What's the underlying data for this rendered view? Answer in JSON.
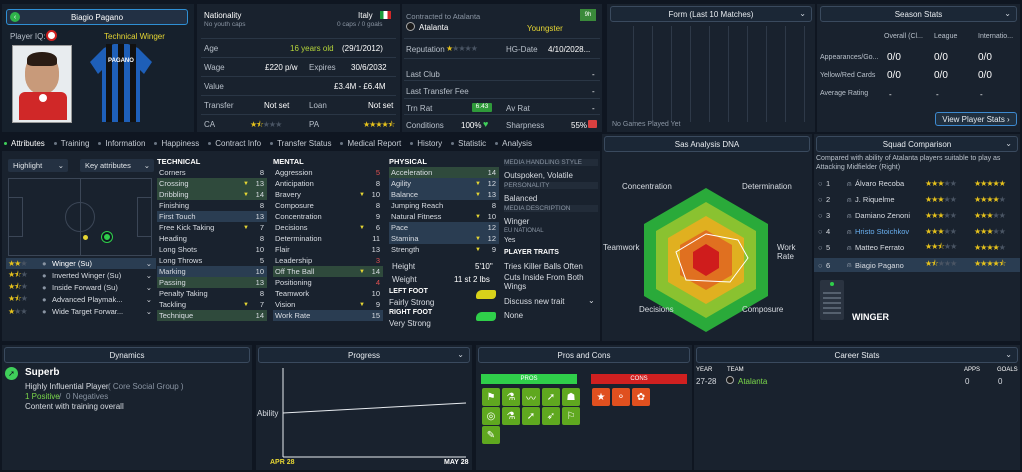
{
  "player": {
    "name": "Biagio Pagano",
    "iq_label": "Player IQ:",
    "role": "Technical Winger",
    "shirt_name": "PAGANO"
  },
  "bio": {
    "nationality_label": "Nationality",
    "nationality": "Italy",
    "youth_caps": "No youth caps",
    "caps": "0 caps / 0 goals",
    "age_label": "Age",
    "age": "16 years old",
    "dob": "(29/1/2012)",
    "wage_label": "Wage",
    "wage": "£220 p/w",
    "expires_label": "Expires",
    "expires": "30/6/2032",
    "value_label": "Value",
    "value": "£3.4M - £6.4M",
    "transfer_label": "Transfer",
    "transfer": "Not set",
    "loan_label": "Loan",
    "loan": "Not set",
    "ca_label": "CA",
    "pa_label": "PA",
    "ca_stars": 1.5,
    "pa_stars": 4.5
  },
  "contract": {
    "title": "Contracted to Atalanta",
    "club": "Atalanta",
    "status": "Youngster",
    "badge": "9h",
    "reputation_label": "Reputation",
    "hg_label": "HG-Date",
    "hg_date": "4/10/2028...",
    "last_club_label": "Last Club",
    "last_club": "-",
    "last_fee_label": "Last Transfer Fee",
    "last_fee": "-",
    "trn_label": "Trn Rat",
    "trn_value": "6.43",
    "av_label": "Av Rat",
    "av_value": "-",
    "cond_label": "Conditions",
    "cond_value": "100%",
    "sharp_label": "Sharpness",
    "sharp_value": "55%"
  },
  "form": {
    "title": "Form (Last 10 Matches)",
    "empty": "No Games Played Yet"
  },
  "season": {
    "title": "Season Stats",
    "cols": [
      "Overall (Cl...",
      "League",
      "Internatio..."
    ],
    "rows": [
      {
        "label": "Appearances/Go...",
        "vals": [
          "0/0",
          "0/0",
          "0/0"
        ]
      },
      {
        "label": "Yellow/Red Cards",
        "vals": [
          "0/0",
          "0/0",
          "0/0"
        ]
      },
      {
        "label": "Average Rating",
        "vals": [
          "-",
          "-",
          "-"
        ]
      }
    ],
    "button": "View Player Stats"
  },
  "tabs": [
    "Attributes",
    "Training",
    "Information",
    "Happiness",
    "Contract Info",
    "Transfer Status",
    "Medical Report",
    "History",
    "Statistic",
    "Analysis"
  ],
  "pitch": {
    "highlight": "Highlight",
    "key_attr": "Key attributes"
  },
  "roles": [
    {
      "name": "Winger (Su)",
      "stars": 2
    },
    {
      "name": "Inverted Winger (Su)",
      "stars": 1.5
    },
    {
      "name": "Inside Forward (Su)",
      "stars": 1.5
    },
    {
      "name": "Advanced Playmak...",
      "stars": 1.5
    },
    {
      "name": "Wide Target Forwar...",
      "stars": 1
    }
  ],
  "technical": {
    "title": "TECHNICAL",
    "items": [
      [
        "Corners",
        "8"
      ],
      [
        "Crossing",
        "13"
      ],
      [
        "Dribbling",
        "14"
      ],
      [
        "Finishing",
        "8"
      ],
      [
        "First Touch",
        "13"
      ],
      [
        "Free Kick Taking",
        "7"
      ],
      [
        "Heading",
        "8"
      ],
      [
        "Long Shots",
        "10"
      ],
      [
        "Long Throws",
        "5"
      ],
      [
        "Marking",
        "10"
      ],
      [
        "Passing",
        "13"
      ],
      [
        "Penalty Taking",
        "8"
      ],
      [
        "Tackling",
        "7"
      ],
      [
        "Technique",
        "14"
      ]
    ]
  },
  "mental": {
    "title": "MENTAL",
    "items": [
      [
        "Aggression",
        "5"
      ],
      [
        "Anticipation",
        "8"
      ],
      [
        "Bravery",
        "10"
      ],
      [
        "Composure",
        "8"
      ],
      [
        "Concentration",
        "9"
      ],
      [
        "Decisions",
        "6"
      ],
      [
        "Determination",
        "11"
      ],
      [
        "Flair",
        "13"
      ],
      [
        "Leadership",
        "3"
      ],
      [
        "Off The Ball",
        "14"
      ],
      [
        "Positioning",
        "4"
      ],
      [
        "Teamwork",
        "10"
      ],
      [
        "Vision",
        "9"
      ],
      [
        "Work Rate",
        "15"
      ]
    ]
  },
  "physical": {
    "title": "PHYSICAL",
    "items": [
      [
        "Acceleration",
        "14"
      ],
      [
        "Agility",
        "12"
      ],
      [
        "Balance",
        "13"
      ],
      [
        "Jumping Reach",
        "8"
      ],
      [
        "Natural Fitness",
        "10"
      ],
      [
        "Pace",
        "12"
      ],
      [
        "Stamina",
        "12"
      ],
      [
        "Strength",
        "9"
      ]
    ],
    "height_label": "Height",
    "height": "5'10\"",
    "weight_label": "Weight",
    "weight": "11 st 2 lbs",
    "left_foot_label": "LEFT FOOT",
    "left_foot": "Fairly Strong",
    "right_foot_label": "RIGHT FOOT",
    "right_foot": "Very Strong"
  },
  "media": {
    "style_label": "MEDIA HANDLING STYLE",
    "style": "Outspoken, Volatile",
    "personality_label": "PERSONALITY",
    "personality": "Balanced",
    "desc_label": "MEDIA DESCRIPTION",
    "desc": "Winger",
    "eu_label": "EU NATIONAL",
    "eu": "Yes",
    "traits_label": "PLAYER TRAITS",
    "traits": [
      "Tries Killer Balls Often",
      "Cuts Inside From Both Wings"
    ],
    "discuss": "Discuss new trait",
    "none": "None"
  },
  "dna": {
    "title": "Sas Analysis DNA",
    "axes": [
      "Concentration",
      "Determination",
      "Work Rate",
      "Composure",
      "Decisions",
      "Teamwork"
    ]
  },
  "squad": {
    "title": "Squad Comparison",
    "subtitle": "Compared with ability of Atalanta players suitable to play as Attacking Midfielder (Right)",
    "rows": [
      {
        "rank": "1",
        "name": "Álvaro Recoba",
        "ca": 3,
        "pa": 5
      },
      {
        "rank": "2",
        "name": "J. Riquelme",
        "ca": 3,
        "pa": 4
      },
      {
        "rank": "3",
        "name": "Damiano Zenoni",
        "ca": 3,
        "pa": 3
      },
      {
        "rank": "4",
        "name": "Hristo Stoichkov",
        "ca": 3,
        "pa": 3
      },
      {
        "rank": "5",
        "name": "Matteo Ferrato",
        "ca": 2.5,
        "pa": 4
      },
      {
        "rank": "6",
        "name": "Biagio Pagano",
        "ca": 1.5,
        "pa": 4.5
      }
    ],
    "position": "WINGER"
  },
  "dynamics": {
    "title": "Dynamics",
    "status": "Superb",
    "influence": "Highly Influential Player",
    "group": "( Core Social Group )",
    "positive": "1 Positive",
    "negative": "0 Negatives",
    "note": "Content with training overall"
  },
  "progress": {
    "title": "Progress",
    "ylabel": "Ability",
    "start": "APR 28",
    "end": "MAY 28"
  },
  "proscons": {
    "title": "Pros and Cons",
    "pros": "PROS",
    "cons": "CONS"
  },
  "career": {
    "title": "Career Stats",
    "year_label": "YEAR",
    "team_label": "TEAM",
    "apps_label": "APPS",
    "goals_label": "GOALS",
    "rows": [
      {
        "year": "27-28",
        "team": "Atalanta",
        "apps": "0",
        "goals": "0"
      }
    ]
  },
  "colors": {
    "accent": "#e6d633",
    "green": "#7bd84a",
    "panel": "#19222e"
  }
}
